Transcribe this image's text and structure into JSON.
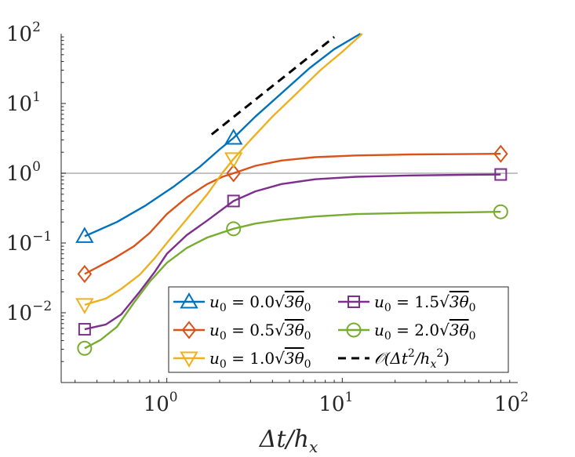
{
  "chart_data": {
    "type": "line",
    "title": "",
    "xlabel": "Δt/h",
    "xlabel_sub": "x",
    "ylabel": "",
    "xscale": "log",
    "yscale": "log",
    "xlim": [
      0.25,
      100
    ],
    "ylim": [
      0.001,
      100
    ],
    "x_ticks": [
      {
        "value": 1,
        "base": "10",
        "exp": "0"
      },
      {
        "value": 10,
        "base": "10",
        "exp": "1"
      },
      {
        "value": 100,
        "base": "10",
        "exp": "2"
      }
    ],
    "y_ticks": [
      {
        "value": 0.01,
        "base": "10",
        "exp": "−2"
      },
      {
        "value": 0.1,
        "base": "10",
        "exp": "−1"
      },
      {
        "value": 1,
        "base": "10",
        "exp": "0"
      },
      {
        "value": 10,
        "base": "10",
        "exp": "1"
      },
      {
        "value": 100,
        "base": "10",
        "exp": "2"
      }
    ],
    "reference_line": {
      "y": 1,
      "color": "#b0b0b0"
    },
    "legend_position": "bottom-right",
    "series": [
      {
        "name": "u0 = 0.0√3θ0",
        "legend": {
          "lhs": "u",
          "lhs_sub": "0",
          "eq": " = 0.0",
          "rad": "3θ",
          "rad_sub": "0"
        },
        "color": "#0072BD",
        "marker": "triangle-up",
        "x": [
          0.34,
          0.52,
          0.75,
          1.1,
          1.55,
          2.0,
          2.4,
          3.2,
          4.5,
          6.5,
          9.0,
          12.7
        ],
        "y": [
          0.125,
          0.2,
          0.34,
          0.65,
          1.25,
          2.2,
          3.2,
          6.5,
          14,
          32,
          60,
          100
        ],
        "marker_x": [
          0.34,
          2.4
        ]
      },
      {
        "name": "u0 = 0.5√3θ0",
        "legend": {
          "lhs": "u",
          "lhs_sub": "0",
          "eq": " = 0.5",
          "rad": "3θ",
          "rad_sub": "0"
        },
        "color": "#D95319",
        "marker": "diamond",
        "x": [
          0.34,
          0.5,
          0.65,
          0.8,
          1.0,
          1.3,
          1.7,
          2.1,
          2.4,
          3.2,
          4.5,
          7,
          12,
          25,
          50,
          80
        ],
        "y": [
          0.036,
          0.06,
          0.09,
          0.14,
          0.26,
          0.45,
          0.7,
          0.9,
          1.0,
          1.28,
          1.52,
          1.7,
          1.8,
          1.86,
          1.88,
          1.9
        ],
        "marker_x": [
          0.34,
          2.4,
          80
        ]
      },
      {
        "name": "u0 = 1.0√3θ0",
        "legend": {
          "lhs": "u",
          "lhs_sub": "0",
          "eq": " = 1.0",
          "rad": "3θ",
          "rad_sub": "0"
        },
        "color": "#EDB120",
        "marker": "triangle-down",
        "x": [
          0.34,
          0.45,
          0.55,
          0.7,
          0.85,
          1.0,
          1.3,
          1.7,
          2.1,
          2.4,
          3.0,
          4.0,
          5.5,
          7.5,
          10,
          13
        ],
        "y": [
          0.013,
          0.016,
          0.022,
          0.035,
          0.06,
          0.1,
          0.22,
          0.5,
          1.05,
          1.6,
          3.0,
          6.5,
          14,
          30,
          55,
          100
        ],
        "marker_x": [
          0.34,
          2.4
        ]
      },
      {
        "name": "u0 = 1.5√3θ0",
        "legend": {
          "lhs": "u",
          "lhs_sub": "0",
          "eq": " = 1.5",
          "rad": "3θ",
          "rad_sub": "0"
        },
        "color": "#7E2F8E",
        "marker": "square",
        "x": [
          0.34,
          0.45,
          0.55,
          0.7,
          0.85,
          1.0,
          1.3,
          1.7,
          2.4,
          3.2,
          4.5,
          7,
          12,
          25,
          50,
          80
        ],
        "y": [
          0.0058,
          0.0068,
          0.0095,
          0.02,
          0.038,
          0.07,
          0.13,
          0.21,
          0.4,
          0.55,
          0.7,
          0.82,
          0.89,
          0.93,
          0.95,
          0.96
        ],
        "marker_x": [
          0.34,
          2.4,
          80
        ]
      },
      {
        "name": "u0 = 2.0√3θ0",
        "legend": {
          "lhs": "u",
          "lhs_sub": "0",
          "eq": " = 2.0",
          "rad": "3θ",
          "rad_sub": "0"
        },
        "color": "#77AC30",
        "marker": "circle",
        "x": [
          0.34,
          0.42,
          0.52,
          0.65,
          0.8,
          1.0,
          1.3,
          1.7,
          2.4,
          3.2,
          4.5,
          7,
          12,
          25,
          50,
          80
        ],
        "y": [
          0.0031,
          0.0041,
          0.0063,
          0.014,
          0.028,
          0.052,
          0.085,
          0.12,
          0.16,
          0.19,
          0.215,
          0.24,
          0.26,
          0.27,
          0.275,
          0.28
        ],
        "marker_x": [
          0.34,
          2.4,
          80
        ]
      },
      {
        "name": "O(Δt²/hx²)",
        "legend": {
          "text": "𝒪(Δt",
          "sup": "2",
          "mid": "/h",
          "sub": "x",
          "sup2": "2",
          "end": ")"
        },
        "color": "#000000",
        "marker": "none",
        "dashed": true,
        "x": [
          1.8,
          9.0
        ],
        "y": [
          3.6,
          90
        ]
      }
    ]
  }
}
